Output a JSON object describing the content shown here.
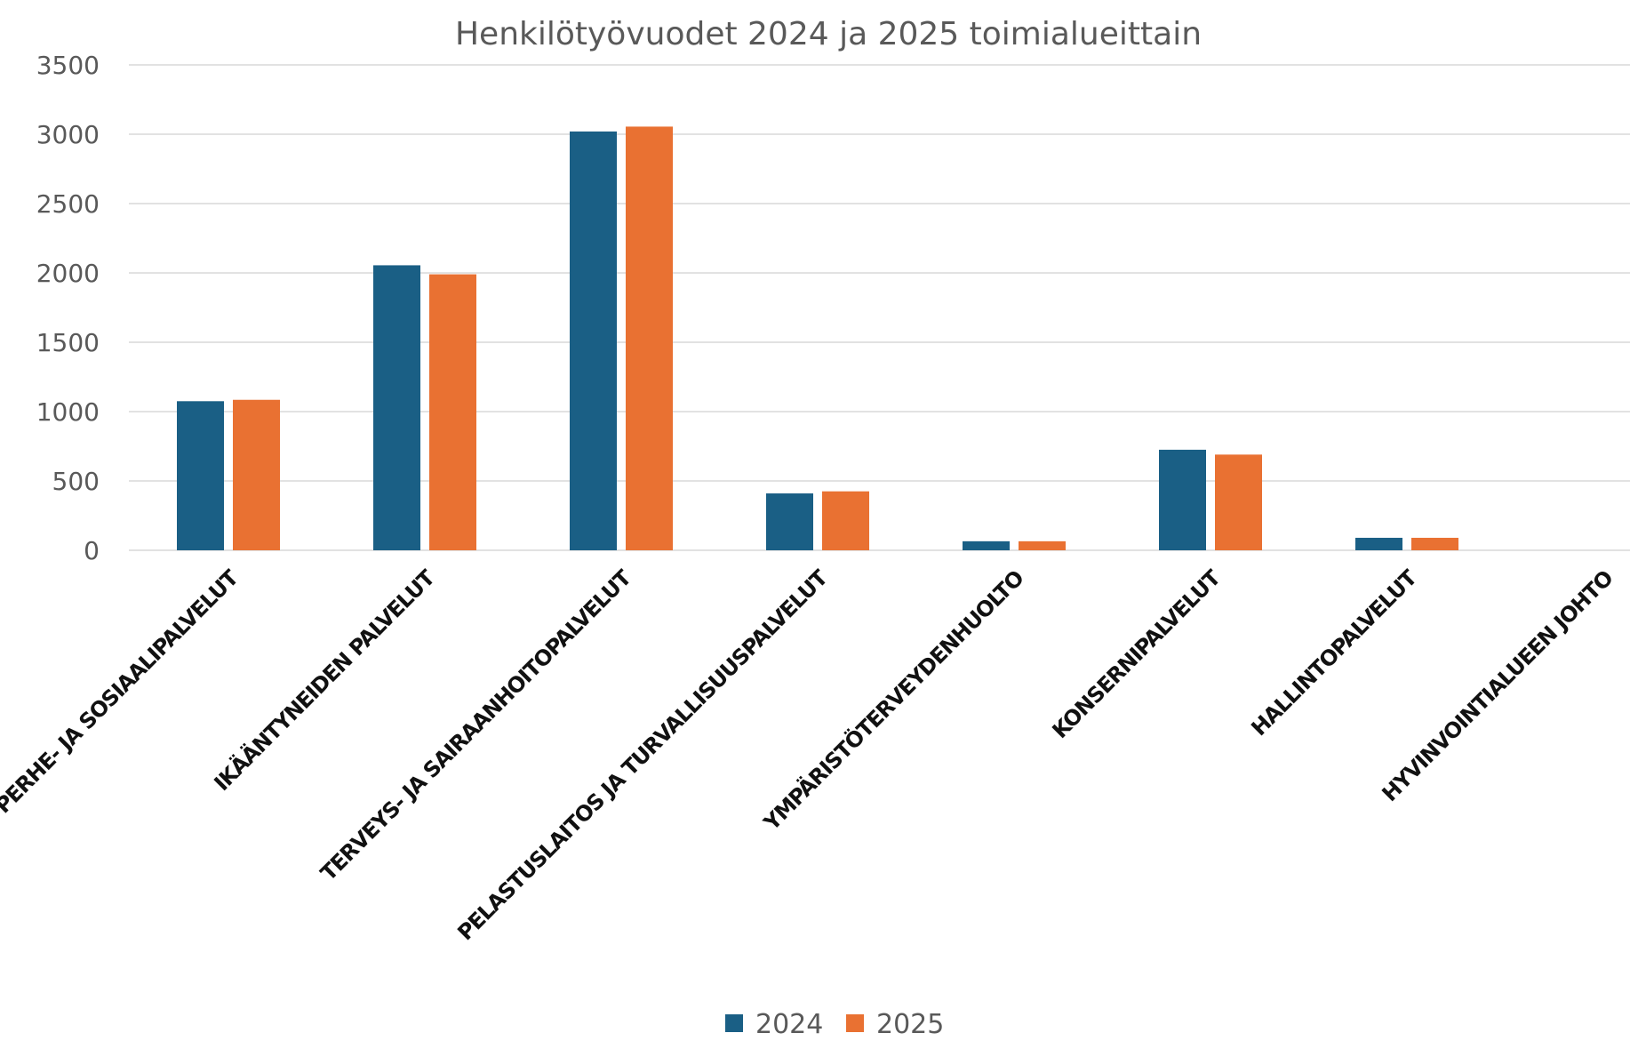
{
  "chart_data": {
    "type": "bar",
    "title": "Henkilötyövuodet 2024 ja 2025 toimialueittain",
    "xlabel": "",
    "ylabel": "",
    "ylim": [
      0,
      3500
    ],
    "yticks": [
      0,
      500,
      1000,
      1500,
      2000,
      2500,
      3000,
      3500
    ],
    "grid": true,
    "legend_position": "bottom",
    "categories": [
      "PERHE- JA SOSIAALIPALVELUT",
      "IKÄÄNTYNEIDEN PALVELUT",
      "TERVEYS- JA SAIRAANHOITOPALVELUT",
      "PELASTUSLAITOS JA TURVALLISUUSPALVELUT",
      "YMPÄRISTÖTERVEYDENHUOLTO",
      "KONSERNIPALVELUT",
      "HALLINTOPALVELUT",
      "HYVINVOINTIALUEEN JOHTO"
    ],
    "series": [
      {
        "name": "2024",
        "color": "#1a5f85",
        "values": [
          1075,
          2055,
          3020,
          410,
          65,
          725,
          90,
          0
        ]
      },
      {
        "name": "2025",
        "color": "#e97132",
        "values": [
          1085,
          1990,
          3055,
          425,
          65,
          690,
          90,
          0
        ]
      }
    ]
  }
}
